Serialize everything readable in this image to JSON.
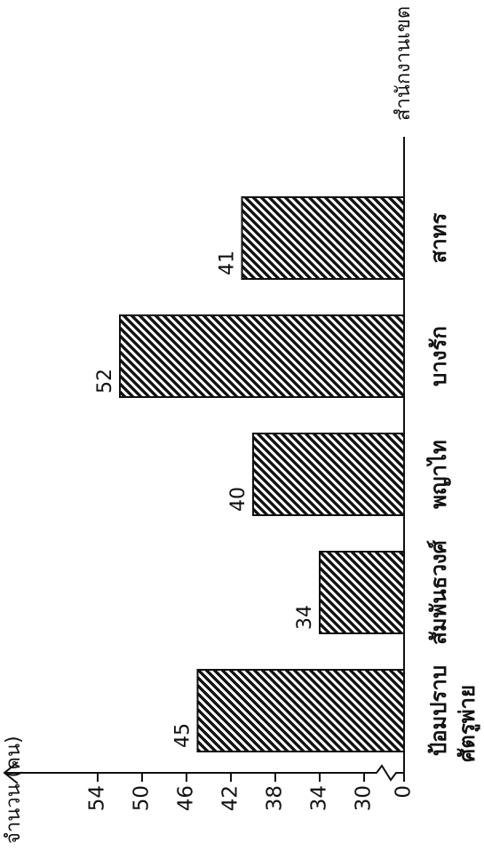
{
  "chart_data": {
    "type": "bar",
    "title": "จำนวน (คน)",
    "x_label": "สำนักงานเขต",
    "subtitle": "ศัตรูพ่าย",
    "categories": [
      "ป้อมปราบ",
      "สัมพันธวงศ์",
      "พญาไท",
      "บางรัก",
      "สาทร"
    ],
    "values": [
      45,
      34,
      40,
      52,
      41
    ],
    "color": "#111111",
    "hatch": true,
    "axis_break": true,
    "ylim": [
      30,
      56
    ],
    "yticks": [
      0,
      30,
      34,
      38,
      42,
      46,
      50,
      54
    ]
  }
}
